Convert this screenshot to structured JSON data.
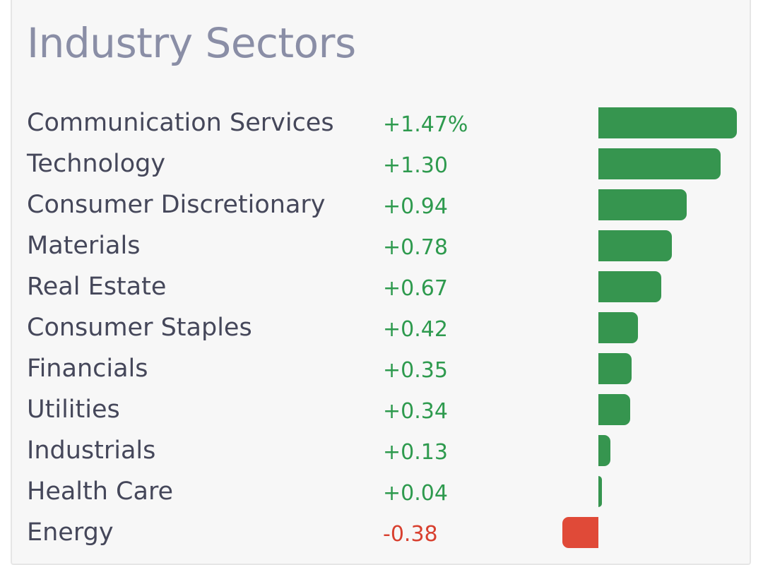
{
  "title": "Industry Sectors",
  "colors": {
    "positive_text": "#2e9a4e",
    "negative_text": "#d8402f",
    "positive_bar": "#36954f",
    "negative_bar": "#e04a38"
  },
  "chart_data": {
    "type": "bar",
    "orientation": "horizontal",
    "title": "Industry Sectors",
    "xlim": [
      -0.4,
      1.5
    ],
    "categories": [
      "Communication Services",
      "Technology",
      "Consumer Discretionary",
      "Materials",
      "Real Estate",
      "Consumer Staples",
      "Financials",
      "Utilities",
      "Industrials",
      "Health Care",
      "Energy"
    ],
    "values": [
      1.47,
      1.3,
      0.94,
      0.78,
      0.67,
      0.42,
      0.35,
      0.34,
      0.13,
      0.04,
      -0.38
    ],
    "value_labels": [
      "+1.47%",
      "+1.30",
      "+0.94",
      "+0.78",
      "+0.67",
      "+0.42",
      "+0.35",
      "+0.34",
      "+0.13",
      "+0.04",
      "-0.38"
    ],
    "grid": false,
    "legend": "none"
  }
}
